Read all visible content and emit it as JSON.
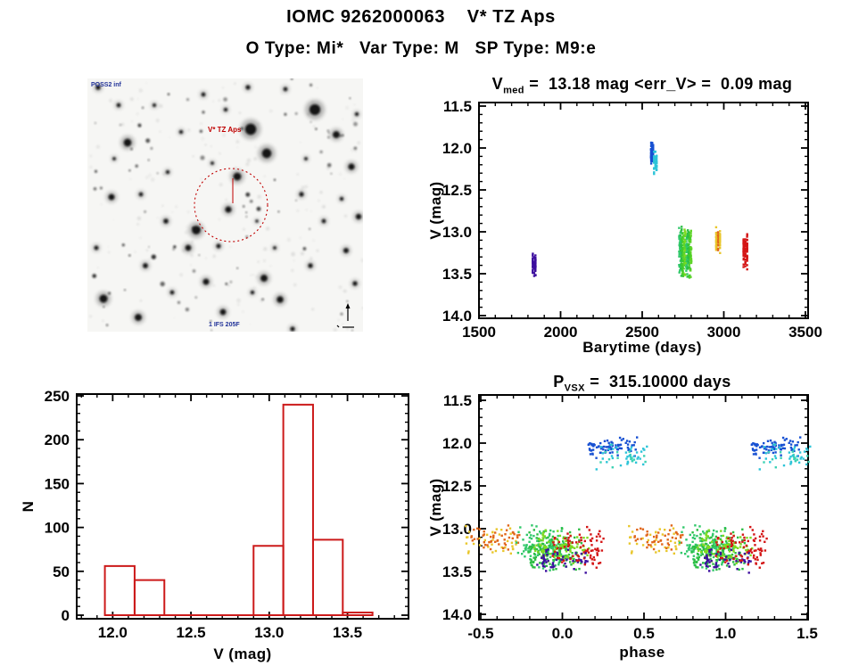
{
  "page": {
    "title": "IOMC 9262000063    V* TZ Aps",
    "subtitle": "O Type: Mi*   Var Type: M   SP Type: M9:e"
  },
  "finding_chart": {
    "survey_label": "POSS2 inf",
    "target_label": "V* TZ Aps",
    "bottom_label": "1 IFS 205F",
    "marker_color": "#C00000",
    "annotation_color": "#223399"
  },
  "chart_data": [
    {
      "id": "lightcurve",
      "type": "scatter",
      "title": {
        "prefix": "V",
        "sub": "med",
        "rest": " =  13.18 mag <err_V> =  0.09 mag"
      },
      "xlabel": "Barytime (days)",
      "ylabel": "V (mag)",
      "xlim": [
        1500,
        3500
      ],
      "ylim": [
        11.5,
        14.0
      ],
      "y_reversed": true,
      "xticks": [
        1500,
        2000,
        2500,
        3000,
        3500
      ],
      "xtick_labels": [
        "1500",
        "2000",
        "2500",
        "3000",
        "3500"
      ],
      "yticks": [
        11.5,
        12.0,
        12.5,
        13.0,
        13.5,
        14.0
      ],
      "ytick_labels": [
        "11.5",
        "12.0",
        "12.5",
        "13.0",
        "13.5",
        "14.0"
      ],
      "x_minor": 100,
      "y_minor": 0.1,
      "grid": false,
      "clusters": [
        {
          "name": "epoch-1",
          "color": "#3C0E9E",
          "x": [
            1826,
            1850
          ],
          "v": [
            13.22,
            13.57
          ],
          "n": 55,
          "cols": 3
        },
        {
          "name": "epoch-2-blue",
          "color": "#1750D2",
          "x": [
            2552,
            2570
          ],
          "v": [
            11.92,
            12.19
          ],
          "n": 80,
          "cols": 3
        },
        {
          "name": "epoch-2-cyan",
          "color": "#2CC4D8",
          "x": [
            2569,
            2592
          ],
          "v": [
            12.02,
            12.33
          ],
          "n": 50,
          "cols": 3
        },
        {
          "name": "epoch-3-green",
          "color": [
            "#30C86A",
            "#2CBE44",
            "#40CC2A",
            "#5ED428",
            "#7EDA20"
          ],
          "x": [
            2726,
            2802
          ],
          "v": [
            12.92,
            13.56
          ],
          "n": 300,
          "cols": 9
        },
        {
          "name": "epoch-4-orange",
          "color": [
            "#E8C62A",
            "#E0661A"
          ],
          "x": [
            2948,
            2982
          ],
          "v": [
            12.92,
            13.28
          ],
          "n": 70,
          "cols": 3
        },
        {
          "name": "epoch-5-red",
          "color": "#D41616",
          "x": [
            3116,
            3148
          ],
          "v": [
            12.96,
            13.48
          ],
          "n": 80,
          "cols": 3
        }
      ]
    },
    {
      "id": "histogram",
      "type": "bar",
      "xlabel": "V (mag)",
      "ylabel": "N",
      "color": "#CC1A1A",
      "bin_start": 11.95,
      "bin_width": 0.19,
      "counts": [
        56,
        40,
        0,
        0,
        0,
        79,
        240,
        86,
        3
      ],
      "xlim": [
        11.77,
        13.89
      ],
      "ylim": [
        0,
        250
      ],
      "xticks": [
        12.0,
        12.5,
        13.0,
        13.5
      ],
      "xtick_labels": [
        "12.0",
        "12.5",
        "13.0",
        "13.5"
      ],
      "yticks": [
        0,
        50,
        100,
        150,
        200,
        250
      ],
      "ytick_labels": [
        "0",
        "50",
        "100",
        "150",
        "200",
        "250"
      ],
      "x_minor": 0.1,
      "y_minor": 10,
      "grid": false
    },
    {
      "id": "phase-curve",
      "type": "scatter",
      "title": {
        "prefix": "P",
        "sub": "VSX",
        "rest": " =  315.10000 days"
      },
      "xlabel": "phase",
      "ylabel": "V (mag)",
      "xlim": [
        -0.5,
        1.5
      ],
      "ylim": [
        11.5,
        14.0
      ],
      "y_reversed": true,
      "xticks": [
        -0.5,
        0.0,
        0.5,
        1.0,
        1.5
      ],
      "xtick_labels": [
        "-0.5",
        "0.0",
        "0.5",
        "1.0",
        "1.5"
      ],
      "yticks": [
        11.5,
        12.0,
        12.5,
        13.0,
        13.5,
        14.0
      ],
      "ytick_labels": [
        "11.5",
        "12.0",
        "12.5",
        "13.0",
        "13.5",
        "14.0"
      ],
      "x_minor": 0.1,
      "y_minor": 0.1,
      "duplicate_offset": 1.0,
      "grid": false,
      "clusters": [
        {
          "name": "ph-yellow",
          "color": "#E8C62A",
          "x": [
            -0.447,
            -0.428
          ],
          "v": [
            12.93,
            13.33
          ],
          "n": 35,
          "cols": 2
        },
        {
          "name": "ph-orange",
          "color": "#E0661A",
          "x": [
            -0.422,
            -0.402
          ],
          "v": [
            12.93,
            13.28
          ],
          "n": 45,
          "cols": 2
        },
        {
          "name": "ph-green-spring",
          "color": "#30C86A",
          "x": [
            -0.148,
            -0.085
          ],
          "v": [
            12.95,
            13.5
          ],
          "n": 120,
          "cols": 5
        },
        {
          "name": "ph-green",
          "color": "#2CBE44",
          "x": [
            -0.09,
            -0.022
          ],
          "v": [
            12.97,
            13.53
          ],
          "n": 130,
          "cols": 5
        },
        {
          "name": "ph-green-yellow",
          "color": "#7EDA20",
          "x": [
            -0.03,
            0.028
          ],
          "v": [
            12.98,
            13.45
          ],
          "n": 90,
          "cols": 4
        },
        {
          "name": "ph-purple",
          "color": "#3C0E9E",
          "x": [
            -0.012,
            0.025
          ],
          "v": [
            13.18,
            13.57
          ],
          "n": 55,
          "cols": 3
        },
        {
          "name": "ph-red",
          "color": "#D41616",
          "x": [
            0.072,
            0.115
          ],
          "v": [
            12.95,
            13.48
          ],
          "n": 80,
          "cols": 3
        },
        {
          "name": "ph-blue",
          "color": "#1750D2",
          "x": [
            0.295,
            0.327
          ],
          "v": [
            11.92,
            12.19
          ],
          "n": 80,
          "cols": 3
        },
        {
          "name": "ph-cyan",
          "color": [
            "#2CC4D8",
            "#3CD2B4"
          ],
          "x": [
            0.338,
            0.395
          ],
          "v": [
            11.97,
            12.35
          ],
          "n": 50,
          "cols": 3
        }
      ]
    }
  ]
}
